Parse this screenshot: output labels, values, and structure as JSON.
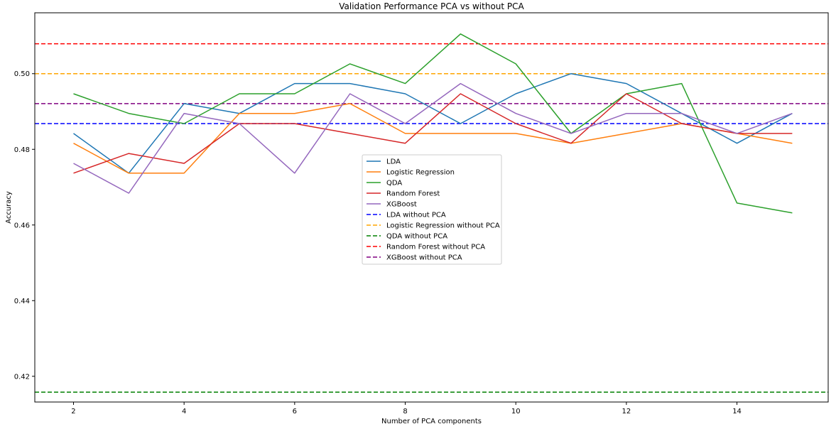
{
  "chart_data": {
    "type": "line",
    "title": "Validation Performance PCA vs without PCA",
    "xlabel": "Number of PCA components",
    "ylabel": "Accuracy",
    "xlim": [
      1.3,
      15.65
    ],
    "ylim": [
      0.4132,
      0.5161
    ],
    "xticks": [
      2,
      4,
      6,
      8,
      10,
      12,
      14
    ],
    "yticks": [
      0.42,
      0.44,
      0.46,
      0.48,
      0.5
    ],
    "ytick_labels": [
      "0.42",
      "0.44",
      "0.46",
      "0.48",
      "0.50"
    ],
    "x": [
      2,
      3,
      4,
      5,
      6,
      7,
      8,
      9,
      10,
      11,
      12,
      13,
      14,
      15
    ],
    "legend_position": "center",
    "series": [
      {
        "name": "LDA",
        "color": "#1f77b4",
        "style": "solid",
        "values": [
          0.4842,
          0.4737,
          0.4921,
          0.4895,
          0.4974,
          0.4974,
          0.4947,
          0.4868,
          0.4947,
          0.5,
          0.4974,
          0.4895,
          0.4816,
          0.4895
        ]
      },
      {
        "name": "Logistic Regression",
        "color": "#ff7f0e",
        "style": "solid",
        "values": [
          0.4816,
          0.4737,
          0.4737,
          0.4895,
          0.4895,
          0.4921,
          0.4842,
          0.4842,
          0.4842,
          0.4816,
          0.4842,
          0.4868,
          0.4842,
          0.4816
        ]
      },
      {
        "name": "QDA",
        "color": "#2ca02c",
        "style": "solid",
        "values": [
          0.4947,
          0.4895,
          0.4868,
          0.4947,
          0.4947,
          0.5026,
          0.4974,
          0.5105,
          0.5026,
          0.4842,
          0.4947,
          0.4974,
          0.4658,
          0.4632
        ]
      },
      {
        "name": "Random Forest",
        "color": "#d62728",
        "style": "solid",
        "values": [
          0.4737,
          0.4789,
          0.4763,
          0.4868,
          0.4868,
          0.4842,
          0.4816,
          0.4947,
          0.4868,
          0.4816,
          0.4947,
          0.4868,
          0.4842,
          0.4842
        ]
      },
      {
        "name": "XGBoost",
        "color": "#9467bd",
        "style": "solid",
        "values": [
          0.4763,
          0.4684,
          0.4895,
          0.4868,
          0.4737,
          0.4947,
          0.4868,
          0.4974,
          0.4895,
          0.4842,
          0.4895,
          0.4895,
          0.4842,
          0.4895
        ]
      }
    ],
    "hlines": [
      {
        "name": "LDA without PCA",
        "color": "#0000ff",
        "style": "dashed",
        "y": 0.4868
      },
      {
        "name": "Logistic Regression without PCA",
        "color": "#ffa500",
        "style": "dashed",
        "y": 0.5
      },
      {
        "name": "QDA without PCA",
        "color": "#008000",
        "style": "dashed",
        "y": 0.4158
      },
      {
        "name": "Random Forest without PCA",
        "color": "#ff0000",
        "style": "dashed",
        "y": 0.5079
      },
      {
        "name": "XGBoost without PCA",
        "color": "#800080",
        "style": "dashed",
        "y": 0.4921
      }
    ]
  }
}
